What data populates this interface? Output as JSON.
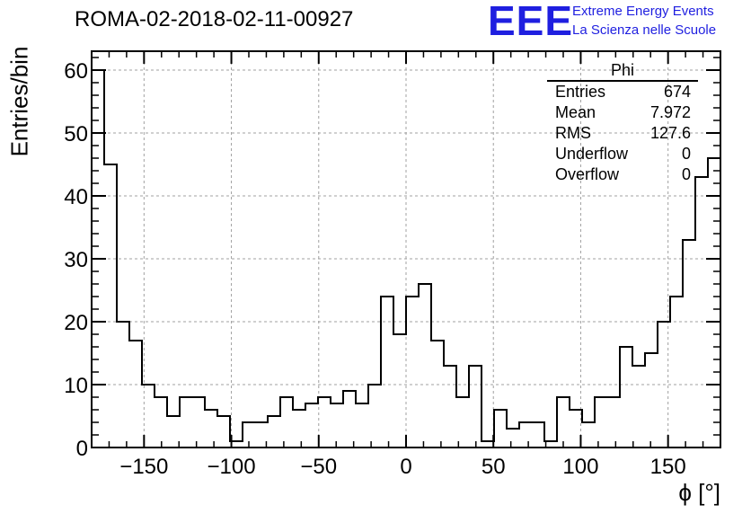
{
  "title": "ROMA-02-2018-02-11-00927",
  "logo": {
    "mark": "EEE",
    "line1": "Extreme Energy Events",
    "line2": "La Scienza nelle Scuole",
    "color": "#1f1fe0"
  },
  "stats_box": {
    "title": "Phi",
    "rows": [
      {
        "label": "Entries",
        "value": "674"
      },
      {
        "label": "Mean",
        "value": "7.972"
      },
      {
        "label": "RMS",
        "value": "127.6"
      },
      {
        "label": "Underflow",
        "value": "0"
      },
      {
        "label": "Overflow",
        "value": "0"
      }
    ]
  },
  "chart_data": {
    "type": "bar",
    "histogram": true,
    "xlabel": "ϕ [°]",
    "ylabel": "Entries/bin",
    "xlim": [
      -180,
      180
    ],
    "ylim": [
      0,
      63
    ],
    "grid": true,
    "bin_width": 7.2,
    "xticks": [
      -150,
      -100,
      -50,
      0,
      50,
      100,
      150
    ],
    "yticks": [
      0,
      10,
      20,
      30,
      40,
      50,
      60
    ],
    "bin_edges_start": -180,
    "values": [
      60,
      45,
      20,
      17,
      10,
      8,
      5,
      8,
      8,
      6,
      5,
      1,
      4,
      4,
      5,
      8,
      6,
      7,
      8,
      7,
      9,
      7,
      10,
      24,
      18,
      24,
      26,
      17,
      13,
      8,
      13,
      1,
      6,
      3,
      4,
      4,
      1,
      8,
      6,
      4,
      8,
      8,
      16,
      13,
      15,
      20,
      24,
      33,
      43,
      46
    ],
    "line_color": "#000000",
    "grid_color": "#a0a0a0"
  }
}
